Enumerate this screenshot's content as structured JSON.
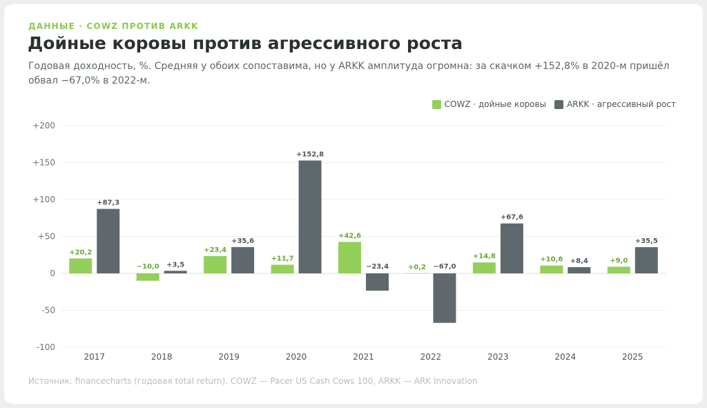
{
  "eyebrow": "ДАННЫЕ · COWZ ПРОТИВ ARKK",
  "title": "Дойные коровы против агрессивного роста",
  "subtitle": "Годовая доходность, %. Средняя у обоих сопоставима, но у ARKK амплитуда огромна: за скачком +152,8% в 2020-м пришёл обвал −67,0% в 2022-м.",
  "source": "Источник: financecharts (годовая total return). COWZ — Pacer US Cash Cows 100, ARKK — ARK Innovation",
  "colors": {
    "cowz": "#94cf5a",
    "arkk": "#5f696d",
    "cowz_label": "#6aa535",
    "arkk_label": "#4e575b"
  },
  "chart_data": {
    "type": "bar",
    "ylim": [
      -100,
      200
    ],
    "yticks": [
      200,
      150,
      100,
      50,
      0,
      -50,
      -100
    ],
    "ytick_labels": [
      "+200",
      "+150",
      "+100",
      "+50",
      "0",
      "-50",
      "-100"
    ],
    "grid": true,
    "legend_position": "top-right",
    "categories": [
      "2017",
      "2018",
      "2019",
      "2020",
      "2021",
      "2022",
      "2023",
      "2024",
      "2025"
    ],
    "series": [
      {
        "name": "COWZ · дойные коровы",
        "values": [
          20.2,
          -10.0,
          23.4,
          11.7,
          42.6,
          0.2,
          14.8,
          10.6,
          9.0
        ],
        "labels": [
          "+20,2",
          "−10,0",
          "+23,4",
          "+11,7",
          "+42,6",
          "+0,2",
          "+14,8",
          "+10,6",
          "+9,0"
        ]
      },
      {
        "name": "ARKK · агрессивный рост",
        "values": [
          87.3,
          3.5,
          35.6,
          152.8,
          -23.4,
          -67.0,
          67.6,
          8.4,
          35.5
        ],
        "labels": [
          "+87,3",
          "+3,5",
          "+35,6",
          "+152,8",
          "−23,4",
          "−67,0",
          "+67,6",
          "+8,4",
          "+35,5"
        ]
      }
    ]
  }
}
